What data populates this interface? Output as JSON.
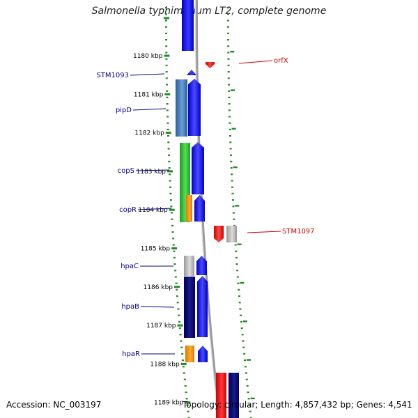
{
  "title": "Salmonella typhimurium LT2, complete genome",
  "footer": {
    "accession": "Accession: NC_003197",
    "info": "Topology: circular; Length: 4,857,432 bp; Genes: 4,541"
  },
  "colors": {
    "forward_cds": "#0000ff",
    "reverse_cds": "#ff0000",
    "tick": "#228b22",
    "backbone": "#999999",
    "label_forward": "#00008b",
    "label_reverse": "#cc0000"
  },
  "ticks": [
    {
      "label": "1180 kbp",
      "kbp": 1180
    },
    {
      "label": "1181 kbp",
      "kbp": 1181
    },
    {
      "label": "1182 kbp",
      "kbp": 1182
    },
    {
      "label": "1183 kbp",
      "kbp": 1183
    },
    {
      "label": "1184 kbp",
      "kbp": 1184
    },
    {
      "label": "1185 kbp",
      "kbp": 1185
    },
    {
      "label": "1186 kbp",
      "kbp": 1186
    },
    {
      "label": "1187 kbp",
      "kbp": 1187
    },
    {
      "label": "1188 kbp",
      "kbp": 1188
    },
    {
      "label": "1189 kbp",
      "kbp": 1189
    }
  ],
  "gene_labels": [
    {
      "name": "STM1093",
      "strand": "forward"
    },
    {
      "name": "pipD",
      "strand": "forward"
    },
    {
      "name": "copS",
      "strand": "forward"
    },
    {
      "name": "copR",
      "strand": "forward"
    },
    {
      "name": "hpaC",
      "strand": "forward"
    },
    {
      "name": "hpaB",
      "strand": "forward"
    },
    {
      "name": "hpaR",
      "strand": "forward"
    },
    {
      "name": "orfX",
      "strand": "reverse"
    },
    {
      "name": "STM1097",
      "strand": "reverse"
    }
  ]
}
